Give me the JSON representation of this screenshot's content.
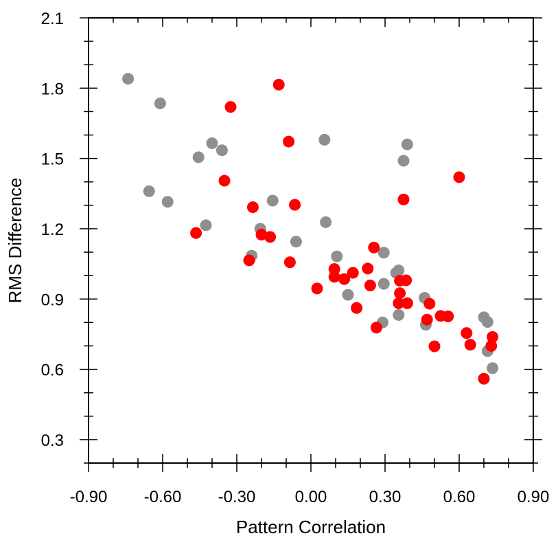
{
  "chart_data": {
    "type": "scatter",
    "title": "",
    "xlabel": "Pattern Correlation",
    "ylabel": "RMS Difference",
    "xlim": [
      -0.9,
      0.9
    ],
    "ylim": [
      0.2,
      2.1
    ],
    "xticks": [
      -0.9,
      -0.6,
      -0.3,
      0.0,
      0.3,
      0.6,
      0.9
    ],
    "xtick_labels": [
      "-0.90",
      "-0.60",
      "-0.30",
      "0.00",
      "0.30",
      "0.60",
      "0.90"
    ],
    "yticks": [
      0.3,
      0.6,
      0.9,
      1.2,
      1.5,
      1.8,
      2.1
    ],
    "ytick_labels": [
      "0.3",
      "0.6",
      "0.9",
      "1.2",
      "1.5",
      "1.8",
      "2.1"
    ],
    "grid": false,
    "legend": "none",
    "series": [
      {
        "color": "#8f8f8f",
        "points": [
          [
            -0.74,
            1.84
          ],
          [
            -0.61,
            1.735
          ],
          [
            -0.655,
            1.36
          ],
          [
            -0.58,
            1.315
          ],
          [
            -0.455,
            1.505
          ],
          [
            -0.4,
            1.565
          ],
          [
            -0.36,
            1.535
          ],
          [
            -0.425,
            1.215
          ],
          [
            -0.155,
            1.32
          ],
          [
            -0.205,
            1.2
          ],
          [
            -0.24,
            1.085
          ],
          [
            -0.06,
            1.145
          ],
          [
            0.055,
            1.58
          ],
          [
            0.06,
            1.228
          ],
          [
            0.105,
            1.082
          ],
          [
            0.15,
            0.918
          ],
          [
            0.295,
            1.098
          ],
          [
            0.295,
            0.965
          ],
          [
            0.345,
            1.012
          ],
          [
            0.355,
            1.022
          ],
          [
            0.355,
            0.832
          ],
          [
            0.29,
            0.8
          ],
          [
            0.375,
            1.49
          ],
          [
            0.39,
            1.56
          ],
          [
            0.46,
            0.905
          ],
          [
            0.465,
            0.79
          ],
          [
            0.7,
            0.822
          ],
          [
            0.715,
            0.802
          ],
          [
            0.715,
            0.678
          ],
          [
            0.735,
            0.605
          ]
        ]
      },
      {
        "color": "#ff0000",
        "points": [
          [
            -0.13,
            1.815
          ],
          [
            -0.325,
            1.72
          ],
          [
            -0.09,
            1.572
          ],
          [
            -0.35,
            1.405
          ],
          [
            -0.235,
            1.292
          ],
          [
            -0.065,
            1.302
          ],
          [
            -0.465,
            1.182
          ],
          [
            -0.2,
            1.175
          ],
          [
            -0.165,
            1.165
          ],
          [
            -0.25,
            1.065
          ],
          [
            -0.085,
            1.057
          ],
          [
            0.025,
            0.945
          ],
          [
            0.095,
            1.028
          ],
          [
            0.095,
            0.995
          ],
          [
            0.135,
            0.985
          ],
          [
            0.17,
            1.012
          ],
          [
            0.185,
            0.862
          ],
          [
            0.23,
            1.03
          ],
          [
            0.24,
            0.958
          ],
          [
            0.255,
            1.12
          ],
          [
            0.265,
            0.778
          ],
          [
            0.36,
            0.978
          ],
          [
            0.385,
            0.98
          ],
          [
            0.36,
            0.925
          ],
          [
            0.355,
            0.882
          ],
          [
            0.39,
            0.882
          ],
          [
            0.375,
            1.325
          ],
          [
            0.6,
            1.42
          ],
          [
            0.48,
            0.88
          ],
          [
            0.47,
            0.812
          ],
          [
            0.525,
            0.828
          ],
          [
            0.555,
            0.826
          ],
          [
            0.5,
            0.698
          ],
          [
            0.63,
            0.755
          ],
          [
            0.645,
            0.705
          ],
          [
            0.735,
            0.738
          ],
          [
            0.73,
            0.7
          ],
          [
            0.7,
            0.56
          ]
        ]
      }
    ]
  }
}
